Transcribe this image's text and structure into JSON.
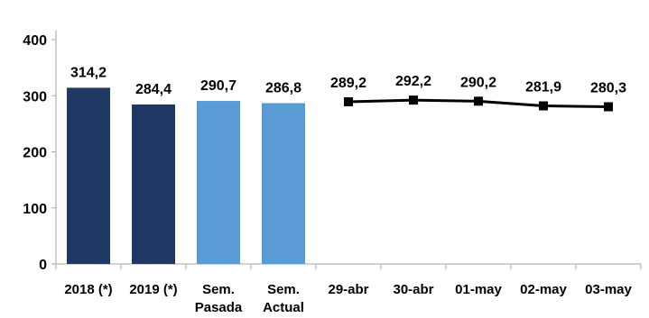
{
  "chart_data": {
    "type": "bar+line",
    "title": "",
    "xlabel": "",
    "ylabel": "",
    "ylim": [
      0,
      400
    ],
    "yticks": [
      0,
      100,
      200,
      300,
      400
    ],
    "grid": false,
    "legend": "none",
    "categories": [
      [
        "2018 (*)"
      ],
      [
        "2019 (*)"
      ],
      [
        "Sem.",
        "Pasada"
      ],
      [
        "Sem.",
        "Actual"
      ],
      [
        "29-abr"
      ],
      [
        "30-abr"
      ],
      [
        "01-may"
      ],
      [
        "02-may"
      ],
      [
        "03-may"
      ]
    ],
    "bars": {
      "values": [
        314.2,
        284.4,
        290.7,
        286.8
      ],
      "labels": [
        "314,2",
        "284,4",
        "290,7",
        "286,8"
      ],
      "colors": [
        "#1f3864",
        "#1f3864",
        "#5b9bd5",
        "#5b9bd5"
      ]
    },
    "line": {
      "values": [
        289.2,
        292.2,
        290.2,
        281.9,
        280.3
      ],
      "labels": [
        "289,2",
        "292,2",
        "290,2",
        "281,9",
        "280,3"
      ],
      "color": "#000000",
      "marker": "square"
    }
  }
}
